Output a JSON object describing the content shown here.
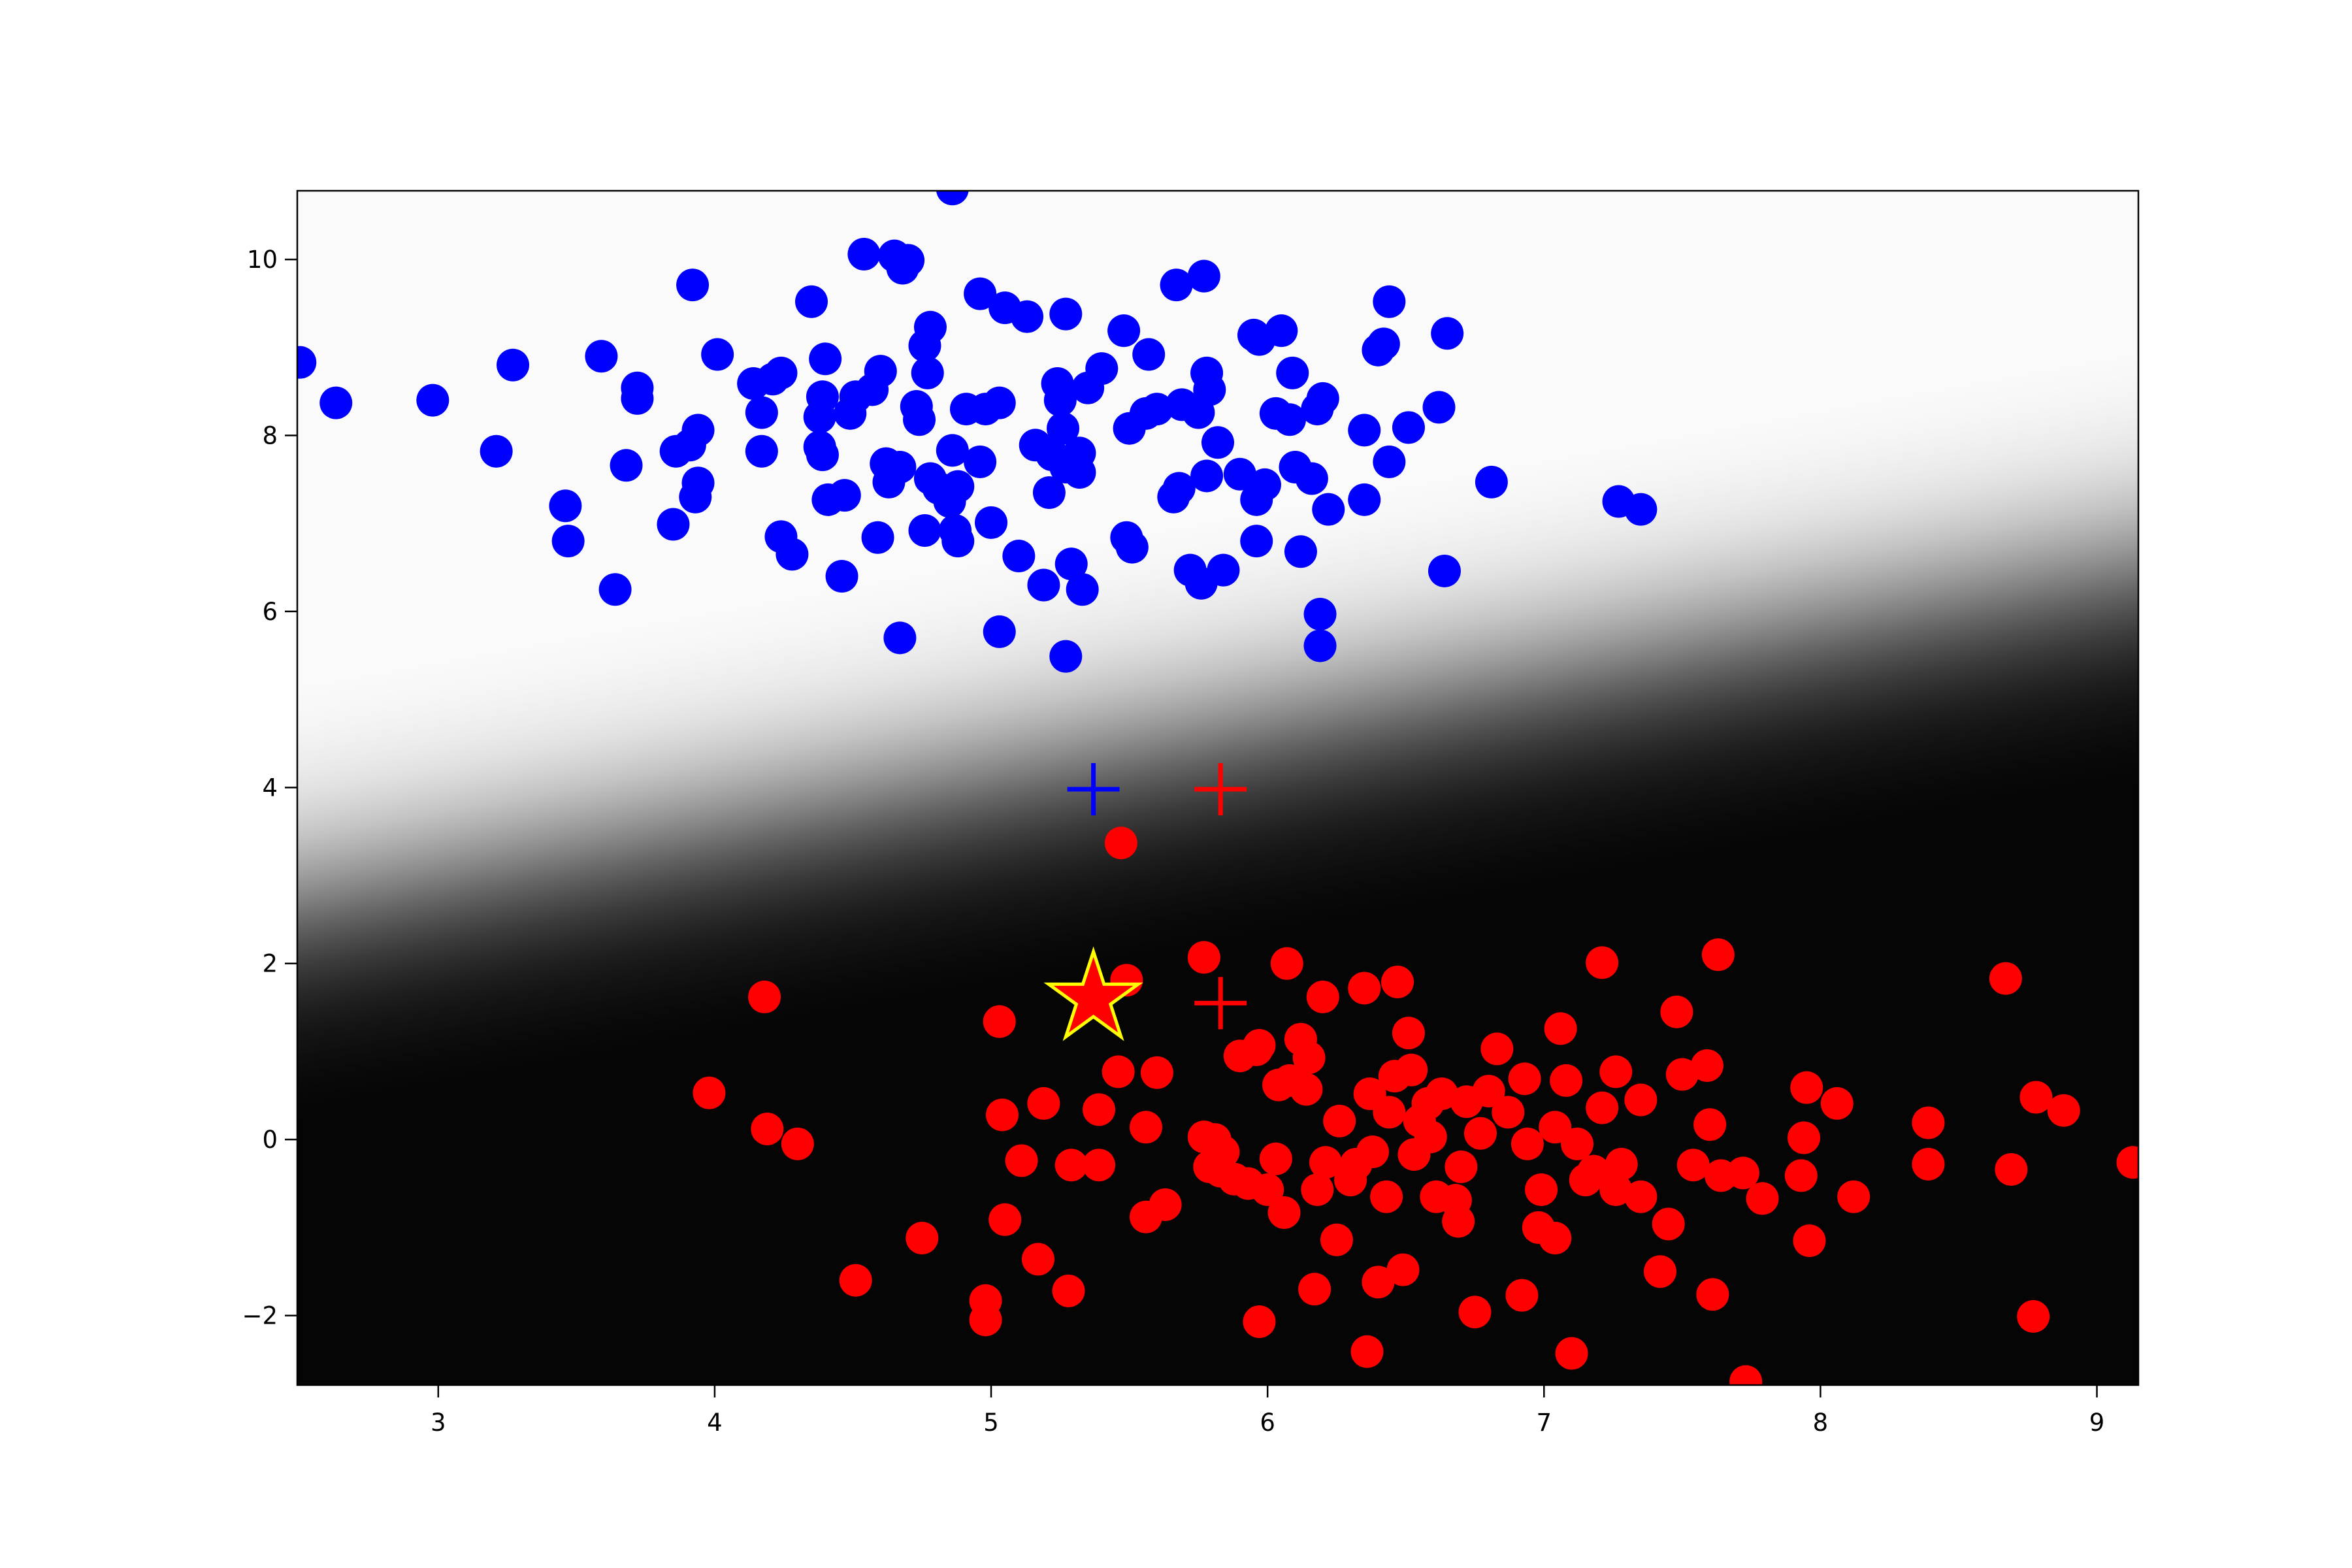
{
  "chart_data": {
    "type": "scatter",
    "xlim": [
      2.49,
      9.15
    ],
    "ylim": [
      -2.79,
      10.78
    ],
    "xticks": [
      3,
      4,
      5,
      6,
      7,
      8,
      9
    ],
    "yticks": [
      {
        "value": -2,
        "label": "−2"
      },
      0,
      2,
      4,
      6,
      8,
      10
    ],
    "background_cmap": "gray",
    "series": [
      {
        "color": "blue",
        "x": [
          2.5,
          2.63,
          2.98,
          3.27,
          3.21,
          3.46,
          3.47,
          3.59,
          3.64,
          3.68,
          3.72,
          3.72,
          3.85,
          3.86,
          3.92,
          3.91,
          3.94,
          3.93,
          3.94,
          4.01,
          4.14,
          4.17,
          4.17,
          4.21,
          4.24,
          4.24,
          4.28,
          4.35,
          4.38,
          4.39,
          4.39,
          4.4,
          4.41,
          4.38,
          4.46,
          4.47,
          4.49,
          4.51,
          4.54,
          4.57,
          4.59,
          4.6,
          4.62,
          4.63,
          4.65,
          4.67,
          4.67,
          4.68,
          4.7,
          4.73,
          4.74,
          4.76,
          4.77,
          4.78,
          4.78,
          4.76,
          4.81,
          4.85,
          4.86,
          4.87,
          4.88,
          4.86,
          4.88,
          4.91,
          4.96,
          4.96,
          4.98,
          5.0,
          5.03,
          5.03,
          5.05,
          5.1,
          5.13,
          5.16,
          5.19,
          5.21,
          5.22,
          5.24,
          5.25,
          5.26,
          5.27,
          5.27,
          5.27,
          5.29,
          5.32,
          5.32,
          5.33,
          5.35,
          5.4,
          5.48,
          5.49,
          5.5,
          5.51,
          5.56,
          5.57,
          5.6,
          5.66,
          5.67,
          5.68,
          5.69,
          5.72,
          5.75,
          5.76,
          5.77,
          5.78,
          5.78,
          5.79,
          5.82,
          5.84,
          5.9,
          5.95,
          5.96,
          5.96,
          5.97,
          5.99,
          6.03,
          6.05,
          6.08,
          6.09,
          6.1,
          6.12,
          6.16,
          6.18,
          6.2,
          6.19,
          6.19,
          6.22,
          6.35,
          6.35,
          6.4,
          6.42,
          6.44,
          6.44,
          6.51,
          6.62,
          6.64,
          6.65,
          6.81,
          7.27,
          7.35
        ],
        "y": [
          8.83,
          8.37,
          8.4,
          8.8,
          7.82,
          7.2,
          6.8,
          8.9,
          6.25,
          7.66,
          8.54,
          8.42,
          6.99,
          7.82,
          9.71,
          7.89,
          8.06,
          7.3,
          7.46,
          8.92,
          8.59,
          8.26,
          7.82,
          8.64,
          8.71,
          6.85,
          6.65,
          9.52,
          8.21,
          8.44,
          7.78,
          8.87,
          7.27,
          7.87,
          6.4,
          7.32,
          8.25,
          8.44,
          10.06,
          8.52,
          6.84,
          8.73,
          7.68,
          7.47,
          10.04,
          5.7,
          7.64,
          9.9,
          9.99,
          8.33,
          8.18,
          9.02,
          8.71,
          9.23,
          7.51,
          6.92,
          7.4,
          7.25,
          7.83,
          6.92,
          6.8,
          10.8,
          7.42,
          8.3,
          9.61,
          7.7,
          8.3,
          7.01,
          8.37,
          5.77,
          9.45,
          6.63,
          9.35,
          7.89,
          6.3,
          7.35,
          7.78,
          8.59,
          8.4,
          8.08,
          9.38,
          7.64,
          5.49,
          6.54,
          7.8,
          7.58,
          6.25,
          8.54,
          8.76,
          9.19,
          6.84,
          8.08,
          6.73,
          8.25,
          8.92,
          8.3,
          7.3,
          9.71,
          7.4,
          8.35,
          6.47,
          8.26,
          6.32,
          9.81,
          7.54,
          8.71,
          8.52,
          7.92,
          6.47,
          7.56,
          9.14,
          6.8,
          7.27,
          9.09,
          7.44,
          8.25,
          9.19,
          8.18,
          8.71,
          7.64,
          6.68,
          7.51,
          8.3,
          8.42,
          5.97,
          5.61,
          7.16,
          7.27,
          8.06,
          8.97,
          9.04,
          7.7,
          9.52,
          8.09,
          8.32,
          6.46,
          9.16,
          7.47,
          7.25,
          7.16
        ]
      },
      {
        "color": "red",
        "x": [
          5.47,
          4.18,
          3.98,
          4.19,
          4.3,
          4.51,
          4.75,
          4.98,
          4.98,
          5.03,
          5.04,
          5.05,
          5.11,
          5.17,
          5.19,
          5.28,
          5.29,
          5.39,
          5.39,
          5.46,
          5.49,
          5.56,
          5.56,
          5.6,
          5.63,
          5.77,
          5.77,
          5.81,
          5.79,
          5.83,
          5.84,
          5.88,
          5.9,
          5.93,
          5.96,
          5.97,
          5.97,
          6.0,
          6.03,
          6.04,
          6.06,
          6.07,
          6.08,
          6.12,
          6.14,
          6.15,
          6.17,
          6.18,
          6.2,
          6.21,
          6.25,
          6.26,
          6.3,
          6.32,
          6.35,
          6.36,
          6.37,
          6.38,
          6.4,
          6.43,
          6.44,
          6.46,
          6.47,
          6.49,
          6.51,
          6.52,
          6.53,
          6.55,
          6.58,
          6.59,
          6.61,
          6.63,
          6.68,
          6.69,
          6.7,
          6.72,
          6.75,
          6.77,
          6.8,
          6.83,
          6.87,
          6.92,
          6.93,
          6.94,
          6.99,
          6.98,
          7.04,
          7.06,
          7.04,
          7.08,
          7.1,
          7.12,
          7.15,
          7.18,
          7.21,
          7.21,
          7.26,
          7.26,
          7.28,
          7.35,
          7.35,
          7.42,
          7.45,
          7.48,
          7.5,
          7.54,
          7.59,
          7.6,
          7.61,
          7.63,
          7.64,
          7.72,
          7.73,
          7.79,
          7.93,
          7.94,
          7.95,
          7.96,
          8.06,
          8.12,
          8.39,
          8.39,
          8.67,
          8.69,
          8.78,
          8.77,
          8.88,
          9.13
        ],
        "y": [
          3.37,
          1.62,
          0.53,
          0.12,
          -0.05,
          -1.6,
          -1.12,
          -1.83,
          -2.05,
          1.34,
          0.28,
          -0.91,
          -0.24,
          -1.36,
          0.41,
          -1.72,
          -0.29,
          -0.29,
          0.34,
          0.77,
          1.81,
          0.14,
          -0.88,
          0.76,
          -0.74,
          2.07,
          0.03,
          0.0,
          -0.31,
          -0.36,
          -0.14,
          -0.45,
          0.95,
          -0.5,
          1.02,
          -2.07,
          1.07,
          -0.57,
          -0.22,
          0.62,
          -0.83,
          2.0,
          0.67,
          1.14,
          0.57,
          0.93,
          -1.7,
          -0.57,
          1.62,
          -0.26,
          -1.14,
          0.21,
          -0.46,
          -0.28,
          1.72,
          -2.41,
          0.52,
          -0.14,
          -1.62,
          -0.65,
          0.31,
          0.72,
          1.79,
          -1.48,
          1.21,
          0.79,
          -0.17,
          0.21,
          0.41,
          0.03,
          -0.65,
          0.52,
          -0.69,
          -0.93,
          -0.31,
          0.43,
          -1.96,
          0.07,
          0.55,
          1.03,
          0.31,
          -1.77,
          0.69,
          -0.05,
          -0.57,
          -1.0,
          -1.12,
          1.26,
          0.14,
          0.67,
          -2.43,
          -0.05,
          -0.46,
          -0.36,
          2.01,
          0.36,
          0.77,
          -0.57,
          -0.28,
          -0.65,
          0.45,
          -1.5,
          -0.96,
          1.45,
          0.74,
          -0.29,
          0.84,
          0.17,
          -1.76,
          2.1,
          -0.41,
          -0.38,
          -2.75,
          -0.67,
          -0.41,
          0.02,
          0.59,
          -1.15,
          0.41,
          -0.65,
          0.19,
          -0.28,
          1.83,
          -0.34,
          0.48,
          -2.01,
          0.33,
          -0.26
        ]
      }
    ],
    "markers": [
      {
        "shape": "plus",
        "color": "blue",
        "x": 5.37,
        "y": 3.98
      },
      {
        "shape": "plus",
        "color": "red",
        "x": 5.83,
        "y": 3.98
      },
      {
        "shape": "plus",
        "color": "red",
        "x": 5.83,
        "y": 1.55
      },
      {
        "shape": "star",
        "color": "red",
        "edgecolor": "yellow",
        "x": 5.37,
        "y": 1.6
      }
    ]
  }
}
